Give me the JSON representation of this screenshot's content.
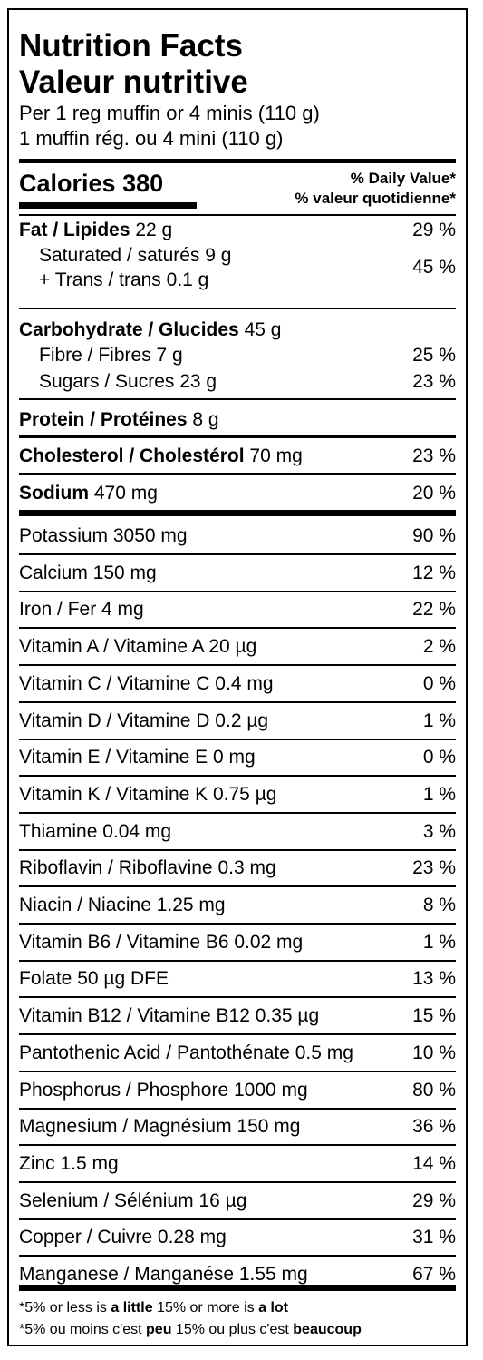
{
  "header": {
    "title_en": "Nutrition Facts",
    "title_fr": "Valeur nutritive",
    "serving_en": "Per 1 reg muffin or 4 minis (110 g)",
    "serving_fr": "1 muffin rég. ou 4 mini (110 g)"
  },
  "calories": {
    "label": "Calories",
    "value": "380"
  },
  "daily_value": {
    "en": "% Daily Value*",
    "fr": "% valeur quotidienne*"
  },
  "fat": {
    "label": "Fat / Lipides",
    "amount": "22 g",
    "pct": "29 %"
  },
  "saturated": {
    "label": "Saturated / saturés 9 g"
  },
  "trans": {
    "label": "+ Trans / trans 0.1 g",
    "pct": "45 %"
  },
  "carbohydrate": {
    "label": "Carbohydrate / Glucides",
    "amount": "45 g"
  },
  "fibre": {
    "label": "Fibre / Fibres 7 g",
    "pct": "25 %"
  },
  "sugars": {
    "label": "Sugars / Sucres 23 g",
    "pct": "23 %"
  },
  "protein": {
    "label": "Protein / Protéines",
    "amount": "8 g"
  },
  "cholesterol": {
    "label": "Cholesterol / Cholestérol",
    "amount": "70 mg",
    "pct": "23 %"
  },
  "sodium": {
    "label": "Sodium",
    "amount": "470 mg",
    "pct": "20 %"
  },
  "micronutrients": [
    {
      "label": "Potassium 3050 mg",
      "pct": "90 %"
    },
    {
      "label": "Calcium 150 mg",
      "pct": "12 %"
    },
    {
      "label": "Iron / Fer 4 mg",
      "pct": "22 %"
    },
    {
      "label": "Vitamin A / Vitamine A 20 µg",
      "pct": "2 %"
    },
    {
      "label": "Vitamin C / Vitamine C 0.4 mg",
      "pct": "0 %"
    },
    {
      "label": "Vitamin D / Vitamine D 0.2 µg",
      "pct": "1 %"
    },
    {
      "label": "Vitamin E / Vitamine E 0 mg",
      "pct": "0 %"
    },
    {
      "label": "Vitamin K / Vitamine K 0.75 µg",
      "pct": "1 %"
    },
    {
      "label": "Thiamine 0.04 mg",
      "pct": "3 %"
    },
    {
      "label": "Riboflavin / Riboflavine 0.3 mg",
      "pct": "23 %"
    },
    {
      "label": "Niacin / Niacine 1.25 mg",
      "pct": "8 %"
    },
    {
      "label": "Vitamin B6 / Vitamine B6 0.02 mg",
      "pct": "1 %"
    },
    {
      "label": "Folate 50 µg DFE",
      "pct": "13 %"
    },
    {
      "label": "Vitamin B12 / Vitamine B12 0.35 µg",
      "pct": "15 %"
    },
    {
      "label": "Pantothenic Acid / Pantothénate 0.5 mg",
      "pct": "10 %"
    },
    {
      "label": "Phosphorus / Phosphore 1000 mg",
      "pct": "80 %"
    },
    {
      "label": "Magnesium / Magnésium 150 mg",
      "pct": "36 %"
    },
    {
      "label": "Zinc 1.5 mg",
      "pct": "14 %"
    },
    {
      "label": "Selenium / Sélénium 16 µg",
      "pct": "29 %"
    },
    {
      "label": "Copper / Cuivre 0.28 mg",
      "pct": "31 %"
    },
    {
      "label": "Manganese / Manganése 1.55 mg",
      "pct": "67 %"
    }
  ],
  "footnote": {
    "en_a": "*5% or less is",
    "en_b": "a little",
    "en_c": "15% or more is",
    "en_d": "a lot",
    "fr_a": "*5% ou moins c'est",
    "fr_b": "peu",
    "fr_c": "15% ou plus c'est",
    "fr_d": "beaucoup"
  }
}
